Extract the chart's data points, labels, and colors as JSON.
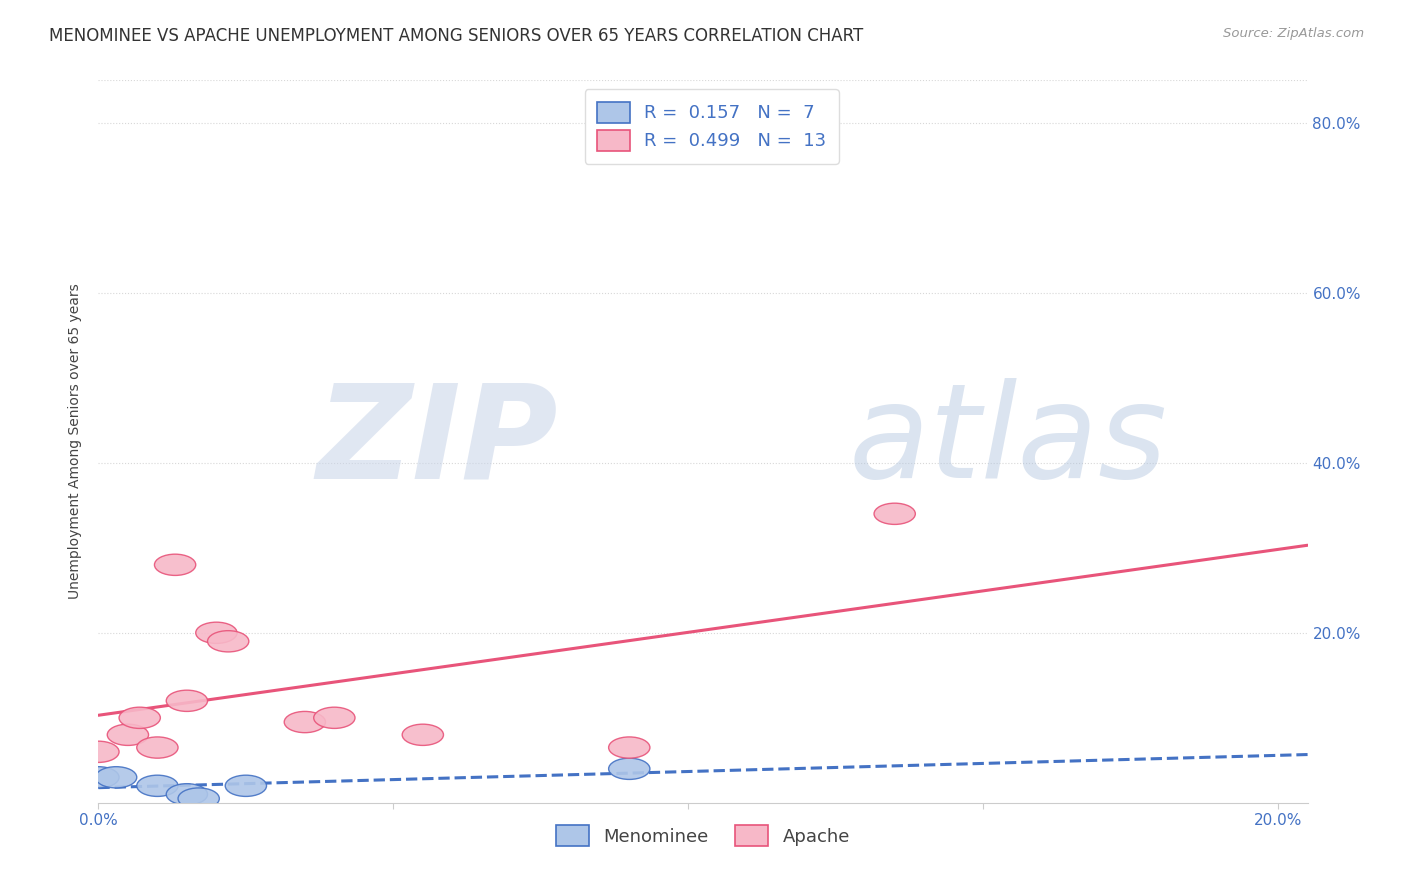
{
  "title": "MENOMINEE VS APACHE UNEMPLOYMENT AMONG SENIORS OVER 65 YEARS CORRELATION CHART",
  "source": "Source: ZipAtlas.com",
  "ylabel": "Unemployment Among Seniors over 65 years",
  "xlim": [
    0.0,
    0.205
  ],
  "ylim": [
    0.0,
    0.85
  ],
  "menominee_points": [
    [
      0.0,
      0.03
    ],
    [
      0.003,
      0.03
    ],
    [
      0.01,
      0.02
    ],
    [
      0.015,
      0.01
    ],
    [
      0.017,
      0.005
    ],
    [
      0.025,
      0.02
    ],
    [
      0.09,
      0.04
    ]
  ],
  "apache_points": [
    [
      0.0,
      0.06
    ],
    [
      0.005,
      0.08
    ],
    [
      0.007,
      0.1
    ],
    [
      0.01,
      0.065
    ],
    [
      0.013,
      0.28
    ],
    [
      0.015,
      0.12
    ],
    [
      0.02,
      0.2
    ],
    [
      0.022,
      0.19
    ],
    [
      0.035,
      0.095
    ],
    [
      0.04,
      0.1
    ],
    [
      0.055,
      0.08
    ],
    [
      0.09,
      0.065
    ],
    [
      0.135,
      0.34
    ]
  ],
  "menominee_R": 0.157,
  "menominee_N": 7,
  "apache_R": 0.499,
  "apache_N": 13,
  "menominee_color": "#aec6e8",
  "apache_color": "#f7b8c8",
  "menominee_line_color": "#4472c4",
  "apache_line_color": "#e8547a",
  "watermark_zip": "ZIP",
  "watermark_atlas": "atlas",
  "watermark_zip_color": "#c8d8ec",
  "watermark_atlas_color": "#b8cce0",
  "background_color": "#ffffff",
  "grid_color": "#d8d8d8",
  "title_fontsize": 12,
  "axis_label_fontsize": 10,
  "tick_fontsize": 11,
  "legend_fontsize": 13,
  "right_tick_color": "#4472c4"
}
